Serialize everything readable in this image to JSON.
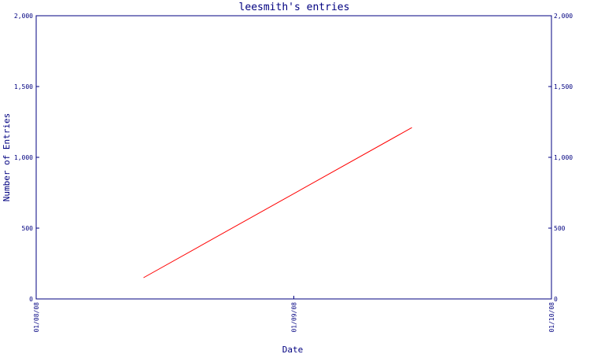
{
  "chart_data": {
    "type": "line",
    "title": "leesmith's entries",
    "xlabel": "Date",
    "ylabel": "Number of Entries",
    "x_ticks": [
      "01/08/08",
      "01/09/08",
      "01/10/08"
    ],
    "y_ticks": [
      "0",
      "500",
      "1,000",
      "1,500",
      "2,000"
    ],
    "y_tick_values": [
      0,
      500,
      1000,
      1500,
      2000
    ],
    "ylim": [
      0,
      2000
    ],
    "xlim": [
      "2008-01-08",
      "2008-01-10"
    ],
    "series": [
      {
        "color": "#ff0000",
        "points": [
          {
            "x": "2008-01-08T10:00",
            "y": 150
          },
          {
            "x": "2008-01-09T11:00",
            "y": 1210
          }
        ]
      }
    ],
    "grid": false,
    "right_axis_mirror": true
  },
  "colors": {
    "frame": "#000080",
    "title": "#000080",
    "series": "#ff0000",
    "background": "#ffffff"
  }
}
